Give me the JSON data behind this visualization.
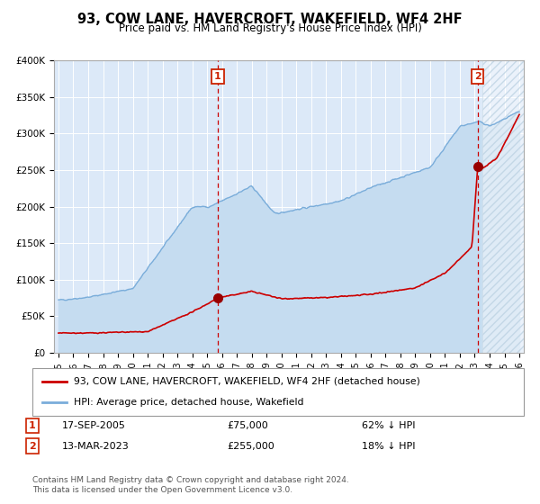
{
  "title": "93, COW LANE, HAVERCROFT, WAKEFIELD, WF4 2HF",
  "subtitle": "Price paid vs. HM Land Registry's House Price Index (HPI)",
  "plot_bg_color": "#dce9f8",
  "red_line_color": "#cc0000",
  "blue_line_color": "#7aadda",
  "blue_fill_color": "#c5dcf0",
  "marker_color": "#990000",
  "vline_color": "#cc0000",
  "ann_box_color": "#cc2200",
  "hatch_color": "#b8cfe0",
  "ylim": [
    0,
    400000
  ],
  "yticks": [
    0,
    50000,
    100000,
    150000,
    200000,
    250000,
    300000,
    350000,
    400000
  ],
  "ytick_labels": [
    "£0",
    "£50K",
    "£100K",
    "£150K",
    "£200K",
    "£250K",
    "£300K",
    "£350K",
    "£400K"
  ],
  "xlim_start": 1994.7,
  "xlim_end": 2026.3,
  "xticks": [
    1995,
    1996,
    1997,
    1998,
    1999,
    2000,
    2001,
    2002,
    2003,
    2004,
    2005,
    2006,
    2007,
    2008,
    2009,
    2010,
    2011,
    2012,
    2013,
    2014,
    2015,
    2016,
    2017,
    2018,
    2019,
    2020,
    2021,
    2022,
    2023,
    2024,
    2025,
    2026
  ],
  "sale1_x": 2005.71,
  "sale1_y": 75000,
  "sale2_x": 2023.19,
  "sale2_y": 255000,
  "hatch_start": 2023.5,
  "legend_line1": "93, COW LANE, HAVERCROFT, WAKEFIELD, WF4 2HF (detached house)",
  "legend_line2": "HPI: Average price, detached house, Wakefield",
  "ann1_date": "17-SEP-2005",
  "ann1_price": "£75,000",
  "ann1_hpi": "62% ↓ HPI",
  "ann2_date": "13-MAR-2023",
  "ann2_price": "£255,000",
  "ann2_hpi": "18% ↓ HPI",
  "footer": "Contains HM Land Registry data © Crown copyright and database right 2024.\nThis data is licensed under the Open Government Licence v3.0."
}
